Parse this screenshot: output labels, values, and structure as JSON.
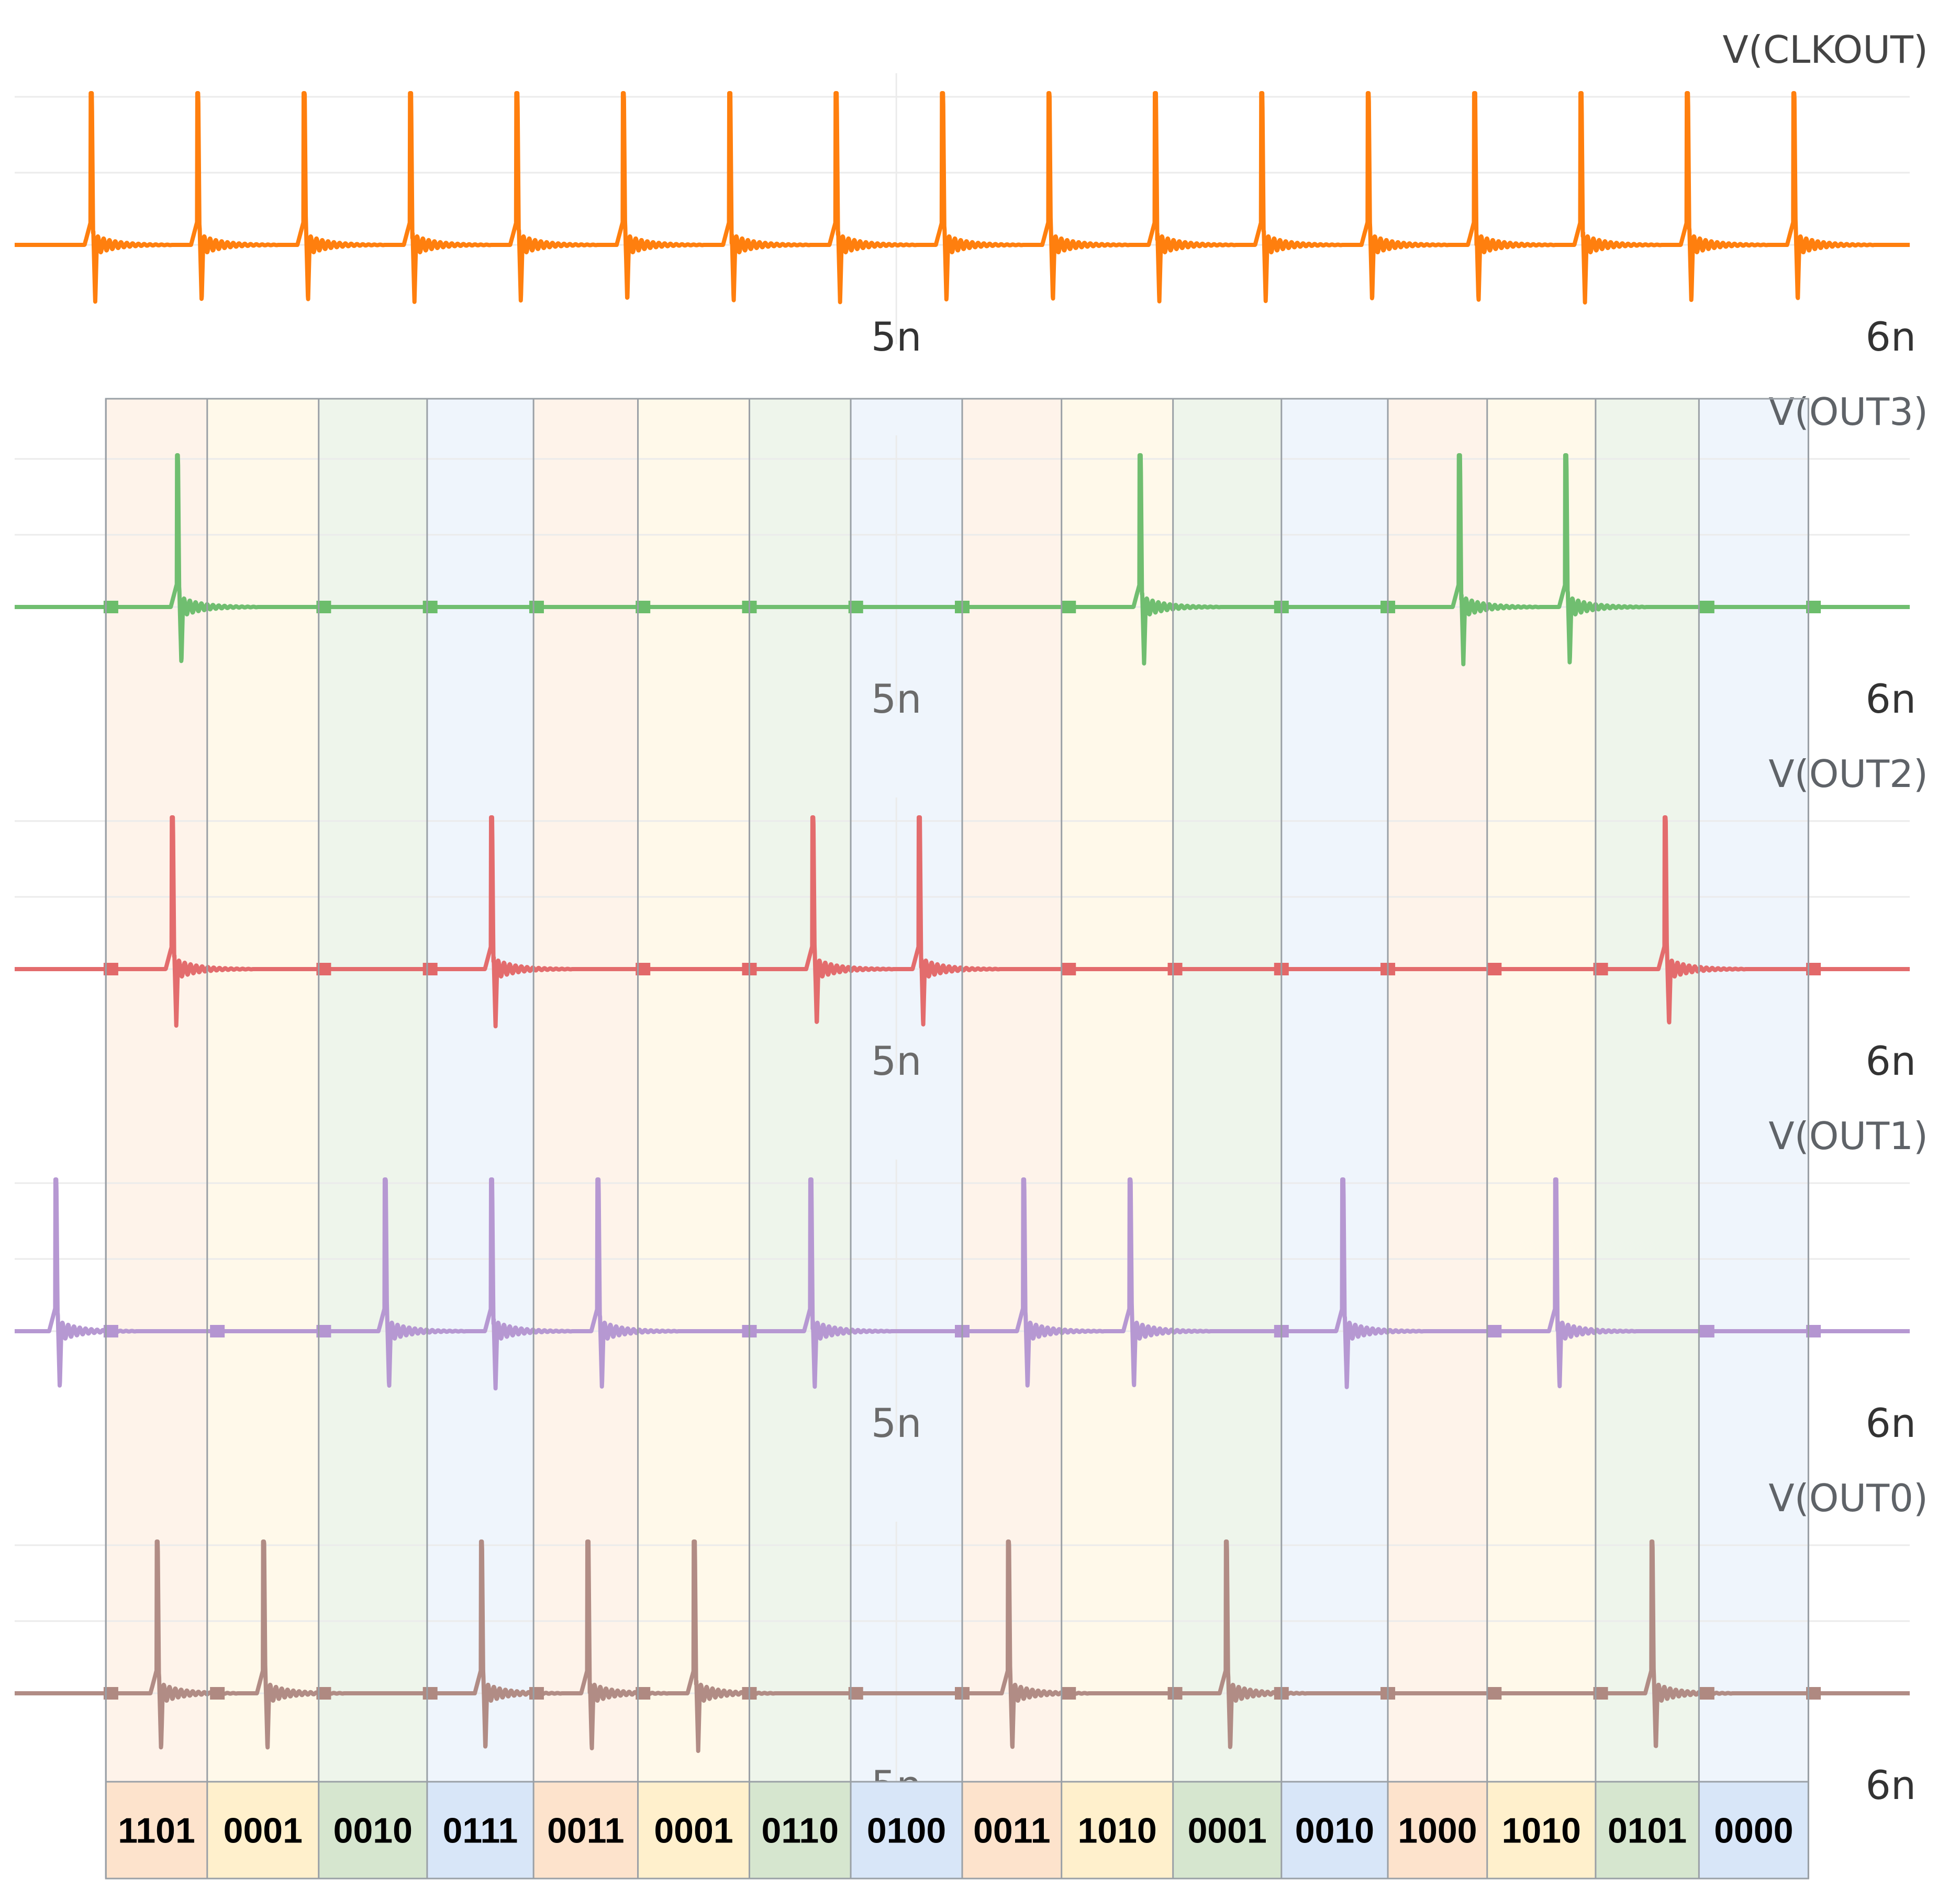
{
  "chart_data": {
    "type": "line",
    "x_axis": {
      "range_ns": [
        4.13,
        6.0
      ],
      "ticks": [
        {
          "value": 5,
          "label": "5n"
        },
        {
          "value": 6,
          "label": "6n"
        }
      ],
      "grid": true
    },
    "spike_shape": {
      "peak": 1.0,
      "undershoot": -0.38,
      "ringing_decay_ns": 0.02,
      "ringing_amplitude": 0.08
    },
    "traces": [
      {
        "name": "V(CLKOUT)",
        "color": "#ff7f0e",
        "baseline": 0,
        "spike_times_ns": [
          4.205,
          4.31,
          4.415,
          4.52,
          4.625,
          4.73,
          4.835,
          4.94,
          5.045,
          5.15,
          5.255,
          5.36,
          5.465,
          5.57,
          5.675,
          5.78,
          5.885
        ]
      },
      {
        "name": "V(OUT3)",
        "color": "#2ca02c",
        "baseline": 0,
        "spike_times_ns": [
          4.29,
          5.24,
          5.555,
          5.66
        ]
      },
      {
        "name": "V(OUT2)",
        "color": "#d62728",
        "baseline": 0,
        "spike_times_ns": [
          4.285,
          4.6,
          4.917,
          5.022,
          5.758
        ]
      },
      {
        "name": "V(OUT1)",
        "color": "#9467bd",
        "baseline": 0,
        "spike_times_ns": [
          4.17,
          4.495,
          4.6,
          4.705,
          4.915,
          5.125,
          5.23,
          5.44,
          5.65
        ]
      },
      {
        "name": "V(OUT0)",
        "color": "#8c564b",
        "baseline": 0,
        "spike_times_ns": [
          4.27,
          4.375,
          4.59,
          4.695,
          4.8,
          5.11,
          5.325,
          5.745
        ]
      }
    ],
    "code_windows": [
      {
        "code": "1101",
        "t_start_ns": 4.22,
        "t_end_ns": 4.32,
        "color": "#fde3cc"
      },
      {
        "code": "0001",
        "t_start_ns": 4.32,
        "t_end_ns": 4.43,
        "color": "#fff0cc"
      },
      {
        "code": "0010",
        "t_start_ns": 4.43,
        "t_end_ns": 4.537,
        "color": "#d6e6cf"
      },
      {
        "code": "0111",
        "t_start_ns": 4.537,
        "t_end_ns": 4.642,
        "color": "#d8e6f8"
      },
      {
        "code": "0011",
        "t_start_ns": 4.642,
        "t_end_ns": 4.745,
        "color": "#fde3cc"
      },
      {
        "code": "0001",
        "t_start_ns": 4.745,
        "t_end_ns": 4.855,
        "color": "#fff0cc"
      },
      {
        "code": "0110",
        "t_start_ns": 4.855,
        "t_end_ns": 4.955,
        "color": "#d6e6cf"
      },
      {
        "code": "0100",
        "t_start_ns": 4.955,
        "t_end_ns": 5.065,
        "color": "#d8e6f8"
      },
      {
        "code": "0011",
        "t_start_ns": 5.065,
        "t_end_ns": 5.163,
        "color": "#fde3cc"
      },
      {
        "code": "1010",
        "t_start_ns": 5.163,
        "t_end_ns": 5.273,
        "color": "#fff0cc"
      },
      {
        "code": "0001",
        "t_start_ns": 5.273,
        "t_end_ns": 5.38,
        "color": "#d6e6cf"
      },
      {
        "code": "0010",
        "t_start_ns": 5.38,
        "t_end_ns": 5.485,
        "color": "#d8e6f8"
      },
      {
        "code": "1000",
        "t_start_ns": 5.485,
        "t_end_ns": 5.583,
        "color": "#fde3cc"
      },
      {
        "code": "1010",
        "t_start_ns": 5.583,
        "t_end_ns": 5.69,
        "color": "#fff0cc"
      },
      {
        "code": "0101",
        "t_start_ns": 5.69,
        "t_end_ns": 5.792,
        "color": "#d6e6cf"
      },
      {
        "code": "0000",
        "t_start_ns": 5.792,
        "t_end_ns": 5.9,
        "color": "#d8e6f8"
      }
    ]
  }
}
